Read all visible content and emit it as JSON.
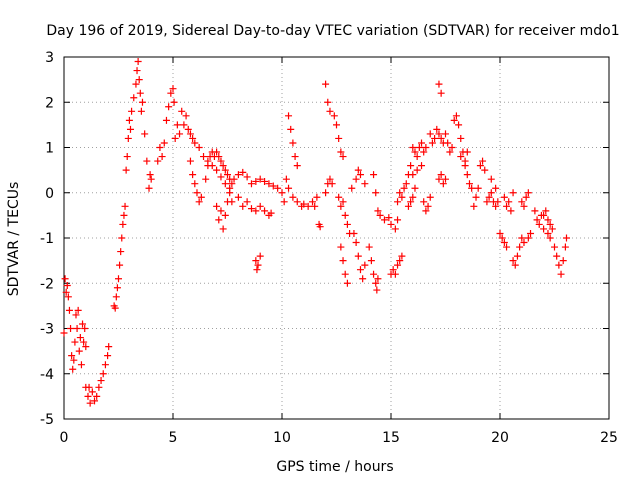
{
  "chart_data": {
    "type": "scatter",
    "title": "Day 196 of 2019, Sidereal Day-to-day VTEC variation (SDTVAR) for receiver mdo1",
    "xlabel": "GPS time / hours",
    "ylabel": "SDTVAR / TECUs",
    "xlim": [
      0,
      25
    ],
    "ylim": [
      -5,
      3
    ],
    "xticks": [
      "0",
      "5",
      "10",
      "15",
      "20",
      "25"
    ],
    "yticks": [
      "-5",
      "-4",
      "-3",
      "-2",
      "-1",
      "0",
      "1",
      "2",
      "3"
    ],
    "grid": true,
    "marker": "plus",
    "color": "#ff0000",
    "series": [
      {
        "name": "SDTVAR",
        "points": [
          [
            0.0,
            -3.1
          ],
          [
            0.05,
            -1.9
          ],
          [
            0.1,
            -2.2
          ],
          [
            0.15,
            -2.05
          ],
          [
            0.2,
            -2.3
          ],
          [
            0.25,
            -2.6
          ],
          [
            0.3,
            -3.0
          ],
          [
            0.35,
            -3.6
          ],
          [
            0.4,
            -3.9
          ],
          [
            0.45,
            -3.7
          ],
          [
            0.5,
            -3.3
          ],
          [
            0.55,
            -2.7
          ],
          [
            0.6,
            -3.0
          ],
          [
            0.65,
            -2.6
          ],
          [
            0.7,
            -3.5
          ],
          [
            0.75,
            -3.2
          ],
          [
            0.8,
            -3.8
          ],
          [
            0.85,
            -2.9
          ],
          [
            0.9,
            -3.3
          ],
          [
            0.95,
            -3.0
          ],
          [
            1.0,
            -3.4
          ],
          [
            1.0,
            -4.3
          ],
          [
            1.1,
            -4.5
          ],
          [
            1.15,
            -4.3
          ],
          [
            1.2,
            -4.65
          ],
          [
            1.3,
            -4.4
          ],
          [
            1.4,
            -4.6
          ],
          [
            1.5,
            -4.5
          ],
          [
            1.6,
            -4.3
          ],
          [
            1.7,
            -4.15
          ],
          [
            1.8,
            -4.0
          ],
          [
            1.9,
            -3.8
          ],
          [
            2.0,
            -3.6
          ],
          [
            2.05,
            -3.4
          ],
          [
            2.3,
            -2.5
          ],
          [
            2.35,
            -2.55
          ],
          [
            2.4,
            -2.3
          ],
          [
            2.45,
            -2.1
          ],
          [
            2.5,
            -1.9
          ],
          [
            2.55,
            -1.6
          ],
          [
            2.6,
            -1.3
          ],
          [
            2.65,
            -1.0
          ],
          [
            2.7,
            -0.7
          ],
          [
            2.75,
            -0.5
          ],
          [
            2.8,
            -0.3
          ],
          [
            2.85,
            0.5
          ],
          [
            2.9,
            0.8
          ],
          [
            2.95,
            1.2
          ],
          [
            3.0,
            1.6
          ],
          [
            3.05,
            1.4
          ],
          [
            3.1,
            1.8
          ],
          [
            3.2,
            2.1
          ],
          [
            3.3,
            2.4
          ],
          [
            3.35,
            2.7
          ],
          [
            3.4,
            2.9
          ],
          [
            3.45,
            2.5
          ],
          [
            3.5,
            2.2
          ],
          [
            3.55,
            1.8
          ],
          [
            3.6,
            2.0
          ],
          [
            3.7,
            1.3
          ],
          [
            3.8,
            0.7
          ],
          [
            3.9,
            0.1
          ],
          [
            3.95,
            0.4
          ],
          [
            4.0,
            0.3
          ],
          [
            4.3,
            0.7
          ],
          [
            4.4,
            1.0
          ],
          [
            4.5,
            0.8
          ],
          [
            4.6,
            1.1
          ],
          [
            4.7,
            1.6
          ],
          [
            4.8,
            1.9
          ],
          [
            4.9,
            2.2
          ],
          [
            5.0,
            2.3
          ],
          [
            5.05,
            2.0
          ],
          [
            5.1,
            1.2
          ],
          [
            5.2,
            1.5
          ],
          [
            5.3,
            1.3
          ],
          [
            5.4,
            1.8
          ],
          [
            5.5,
            1.5
          ],
          [
            5.6,
            1.7
          ],
          [
            5.7,
            1.4
          ],
          [
            5.8,
            1.3
          ],
          [
            5.9,
            1.2
          ],
          [
            6.0,
            1.1
          ],
          [
            6.2,
            1.0
          ],
          [
            6.4,
            0.8
          ],
          [
            6.6,
            0.7
          ],
          [
            6.8,
            0.6
          ],
          [
            7.0,
            0.5
          ],
          [
            7.2,
            0.35
          ],
          [
            7.4,
            0.2
          ],
          [
            7.6,
            0.0
          ],
          [
            7.7,
            -0.2
          ],
          [
            5.8,
            0.7
          ],
          [
            5.9,
            0.4
          ],
          [
            6.0,
            0.2
          ],
          [
            6.1,
            0.0
          ],
          [
            6.2,
            -0.2
          ],
          [
            6.3,
            -0.1
          ],
          [
            6.5,
            0.3
          ],
          [
            6.6,
            0.6
          ],
          [
            6.7,
            0.8
          ],
          [
            6.8,
            0.9
          ],
          [
            6.9,
            0.8
          ],
          [
            7.0,
            0.9
          ],
          [
            7.1,
            0.8
          ],
          [
            7.2,
            0.7
          ],
          [
            7.3,
            0.6
          ],
          [
            7.4,
            0.5
          ],
          [
            7.5,
            0.4
          ],
          [
            7.6,
            0.3
          ],
          [
            7.7,
            0.2
          ],
          [
            7.0,
            -0.3
          ],
          [
            7.1,
            -0.6
          ],
          [
            7.2,
            -0.4
          ],
          [
            7.3,
            -0.8
          ],
          [
            7.4,
            -0.5
          ],
          [
            7.5,
            -0.2
          ],
          [
            7.6,
            0.1
          ],
          [
            7.8,
            0.3
          ],
          [
            8.0,
            0.4
          ],
          [
            8.2,
            0.45
          ],
          [
            8.4,
            0.35
          ],
          [
            8.6,
            0.2
          ],
          [
            8.8,
            0.25
          ],
          [
            9.0,
            0.3
          ],
          [
            9.2,
            0.25
          ],
          [
            9.4,
            0.2
          ],
          [
            9.6,
            0.15
          ],
          [
            9.8,
            0.1
          ],
          [
            8.0,
            -0.1
          ],
          [
            8.2,
            -0.3
          ],
          [
            8.4,
            -0.2
          ],
          [
            8.6,
            -0.35
          ],
          [
            8.8,
            -0.4
          ],
          [
            9.0,
            -0.3
          ],
          [
            9.2,
            -0.4
          ],
          [
            9.4,
            -0.5
          ],
          [
            9.5,
            -0.45
          ],
          [
            8.8,
            -1.5
          ],
          [
            8.85,
            -1.7
          ],
          [
            8.9,
            -1.6
          ],
          [
            9.0,
            -1.4
          ],
          [
            10.0,
            0.0
          ],
          [
            10.1,
            -0.2
          ],
          [
            10.2,
            0.3
          ],
          [
            10.3,
            0.1
          ],
          [
            10.5,
            -0.1
          ],
          [
            10.7,
            -0.2
          ],
          [
            10.9,
            -0.3
          ],
          [
            11.0,
            -0.25
          ],
          [
            11.2,
            -0.3
          ],
          [
            11.4,
            -0.2
          ],
          [
            11.5,
            -0.3
          ],
          [
            11.6,
            -0.1
          ],
          [
            10.3,
            1.7
          ],
          [
            10.4,
            1.4
          ],
          [
            10.5,
            1.1
          ],
          [
            10.6,
            0.8
          ],
          [
            10.7,
            0.6
          ],
          [
            11.7,
            -0.7
          ],
          [
            11.75,
            -0.75
          ],
          [
            12.0,
            0.0
          ],
          [
            12.1,
            0.2
          ],
          [
            12.2,
            0.3
          ],
          [
            12.3,
            0.2
          ],
          [
            12.0,
            2.4
          ],
          [
            12.1,
            2.0
          ],
          [
            12.2,
            1.8
          ],
          [
            12.4,
            1.7
          ],
          [
            12.5,
            1.5
          ],
          [
            12.6,
            1.2
          ],
          [
            12.7,
            0.9
          ],
          [
            12.8,
            0.8
          ],
          [
            12.6,
            -0.1
          ],
          [
            12.7,
            -0.3
          ],
          [
            12.8,
            -0.2
          ],
          [
            12.9,
            -0.5
          ],
          [
            13.0,
            -0.7
          ],
          [
            13.1,
            -0.9
          ],
          [
            12.7,
            -1.2
          ],
          [
            12.8,
            -1.5
          ],
          [
            12.9,
            -1.8
          ],
          [
            13.0,
            -2.0
          ],
          [
            13.3,
            -0.9
          ],
          [
            13.4,
            -1.1
          ],
          [
            13.5,
            -1.4
          ],
          [
            13.6,
            -1.7
          ],
          [
            13.7,
            -1.9
          ],
          [
            13.8,
            -1.6
          ],
          [
            13.2,
            0.1
          ],
          [
            13.4,
            0.3
          ],
          [
            13.5,
            0.5
          ],
          [
            13.6,
            0.4
          ],
          [
            13.8,
            0.2
          ],
          [
            14.0,
            -1.2
          ],
          [
            14.1,
            -1.5
          ],
          [
            14.2,
            -1.8
          ],
          [
            14.3,
            -2.0
          ],
          [
            14.35,
            -2.15
          ],
          [
            14.4,
            -1.9
          ],
          [
            14.2,
            0.4
          ],
          [
            14.3,
            0.0
          ],
          [
            14.4,
            -0.4
          ],
          [
            14.5,
            -0.5
          ],
          [
            14.7,
            -0.6
          ],
          [
            14.9,
            -0.55
          ],
          [
            15.0,
            -0.7
          ],
          [
            15.2,
            -0.8
          ],
          [
            15.3,
            -0.6
          ],
          [
            15.0,
            -1.8
          ],
          [
            15.1,
            -1.7
          ],
          [
            15.2,
            -1.8
          ],
          [
            15.3,
            -1.6
          ],
          [
            15.4,
            -1.5
          ],
          [
            15.5,
            -1.4
          ],
          [
            15.3,
            -0.2
          ],
          [
            15.4,
            0.0
          ],
          [
            15.5,
            -0.1
          ],
          [
            15.6,
            0.1
          ],
          [
            15.7,
            0.2
          ],
          [
            15.8,
            0.4
          ],
          [
            15.9,
            0.6
          ],
          [
            16.0,
            0.4
          ],
          [
            16.2,
            0.5
          ],
          [
            16.4,
            0.6
          ],
          [
            15.8,
            -0.3
          ],
          [
            15.9,
            -0.2
          ],
          [
            16.0,
            -0.1
          ],
          [
            16.1,
            0.1
          ],
          [
            16.0,
            1.0
          ],
          [
            16.1,
            0.9
          ],
          [
            16.2,
            0.8
          ],
          [
            16.3,
            1.0
          ],
          [
            16.4,
            1.1
          ],
          [
            16.5,
            0.9
          ],
          [
            16.6,
            1.0
          ],
          [
            16.5,
            -0.2
          ],
          [
            16.6,
            -0.4
          ],
          [
            16.7,
            -0.3
          ],
          [
            16.8,
            -0.1
          ],
          [
            16.8,
            1.3
          ],
          [
            16.9,
            1.1
          ],
          [
            17.0,
            1.2
          ],
          [
            17.1,
            1.4
          ],
          [
            17.2,
            1.3
          ],
          [
            17.3,
            1.2
          ],
          [
            17.4,
            1.1
          ],
          [
            17.5,
            1.3
          ],
          [
            17.6,
            1.1
          ],
          [
            17.7,
            0.9
          ],
          [
            17.8,
            1.0
          ],
          [
            17.2,
            0.3
          ],
          [
            17.3,
            0.4
          ],
          [
            17.4,
            0.2
          ],
          [
            17.5,
            0.3
          ],
          [
            17.2,
            2.4
          ],
          [
            17.3,
            2.2
          ],
          [
            17.9,
            1.6
          ],
          [
            18.0,
            1.7
          ],
          [
            18.1,
            1.5
          ],
          [
            18.2,
            1.2
          ],
          [
            18.3,
            0.9
          ],
          [
            18.4,
            0.6
          ],
          [
            18.5,
            0.4
          ],
          [
            18.6,
            0.2
          ],
          [
            18.7,
            0.1
          ],
          [
            18.2,
            0.8
          ],
          [
            18.4,
            0.7
          ],
          [
            18.5,
            0.9
          ],
          [
            18.8,
            -0.3
          ],
          [
            18.9,
            -0.1
          ],
          [
            19.0,
            0.1
          ],
          [
            19.1,
            0.6
          ],
          [
            19.2,
            0.7
          ],
          [
            19.3,
            0.5
          ],
          [
            19.4,
            -0.2
          ],
          [
            19.5,
            -0.1
          ],
          [
            19.6,
            0.0
          ],
          [
            19.7,
            -0.2
          ],
          [
            19.8,
            -0.3
          ],
          [
            19.9,
            -0.2
          ],
          [
            19.6,
            0.3
          ],
          [
            19.8,
            0.1
          ],
          [
            20.2,
            -0.1
          ],
          [
            20.3,
            -0.3
          ],
          [
            20.4,
            -0.2
          ],
          [
            20.5,
            -0.4
          ],
          [
            20.6,
            0.0
          ],
          [
            20.0,
            -0.9
          ],
          [
            20.1,
            -1.0
          ],
          [
            20.2,
            -1.1
          ],
          [
            20.3,
            -1.2
          ],
          [
            20.6,
            -1.5
          ],
          [
            20.7,
            -1.6
          ],
          [
            20.8,
            -1.4
          ],
          [
            20.9,
            -1.2
          ],
          [
            21.0,
            -1.0
          ],
          [
            21.1,
            -1.1
          ],
          [
            21.0,
            -0.2
          ],
          [
            21.1,
            -0.3
          ],
          [
            21.2,
            -0.1
          ],
          [
            21.3,
            0.0
          ],
          [
            21.3,
            -1.0
          ],
          [
            21.4,
            -0.9
          ],
          [
            21.6,
            -0.4
          ],
          [
            21.7,
            -0.6
          ],
          [
            21.8,
            -0.7
          ],
          [
            21.9,
            -0.5
          ],
          [
            22.0,
            -0.5
          ],
          [
            22.1,
            -0.4
          ],
          [
            22.2,
            -0.6
          ],
          [
            22.3,
            -0.7
          ],
          [
            22.4,
            -0.8
          ],
          [
            22.0,
            -0.8
          ],
          [
            22.2,
            -0.9
          ],
          [
            22.3,
            -1.0
          ],
          [
            22.5,
            -1.2
          ],
          [
            22.6,
            -1.4
          ],
          [
            22.7,
            -1.6
          ],
          [
            22.8,
            -1.8
          ],
          [
            22.9,
            -1.5
          ],
          [
            23.0,
            -1.2
          ],
          [
            23.05,
            -1.0
          ]
        ]
      }
    ]
  }
}
